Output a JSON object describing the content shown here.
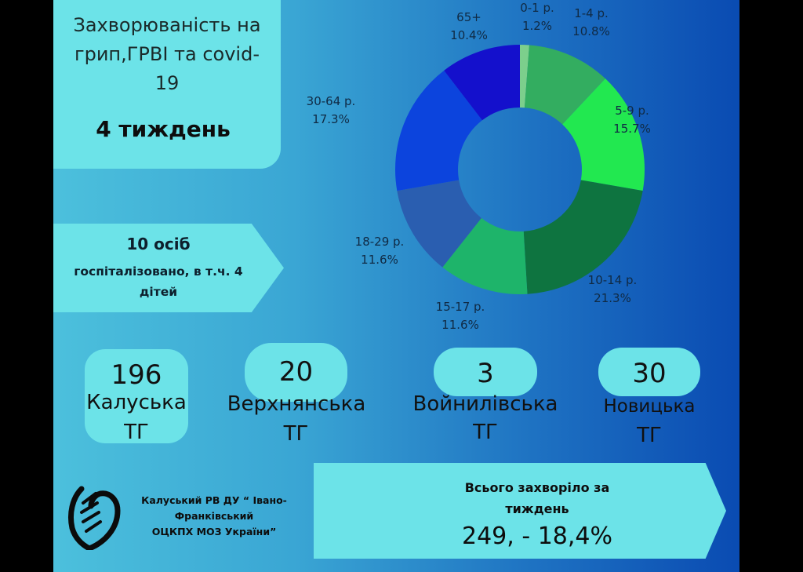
{
  "title": {
    "text": "Захворюваність на грип,ГРВІ та covid-19",
    "line1": "Захворюваність на",
    "line2": "грип,ГРВІ та covid-",
    "line3": "19",
    "week": "4 тиждень"
  },
  "hospitalized": {
    "headline": "10 осіб",
    "line1": "госпіталізовано, в т.ч. 4",
    "line2": "дітей"
  },
  "communities": [
    {
      "count": "196",
      "name": "Калуська",
      "suffix": "ТГ"
    },
    {
      "count": "20",
      "name": "Верхнянська",
      "suffix": "ТГ"
    },
    {
      "count": "3",
      "name": "Войнилівська",
      "suffix": "ТГ"
    },
    {
      "count": "30",
      "name": "Новицька",
      "suffix": "ТГ"
    }
  ],
  "organization": {
    "line1": "Калуський РВ ДУ “ Івано-",
    "line2": "Франківський",
    "line3": "ОЦКПХ МОЗ України”",
    "logo": "shield-logo"
  },
  "total": {
    "label1": "Всього захворіло за",
    "label2": "тиждень",
    "value": "249, - 18,4%"
  },
  "chart_data": {
    "type": "pie",
    "variant": "donut",
    "categories": [
      "0-1 р.",
      "1-4 р.",
      "5-9 р.",
      "10-14 р.",
      "15-17 р.",
      "18-29 р.",
      "30-64 р.",
      "65+"
    ],
    "values": [
      1.2,
      10.8,
      15.7,
      21.3,
      11.6,
      11.6,
      17.3,
      10.4
    ],
    "unit": "%",
    "colors": [
      "#7ccf8c",
      "#33ad60",
      "#22e850",
      "#0e7440",
      "#1eb46a",
      "#2a5eb0",
      "#0c44dd",
      "#1410cc"
    ],
    "direction": "clockwise from top",
    "legend": "none, labels outside slices"
  }
}
